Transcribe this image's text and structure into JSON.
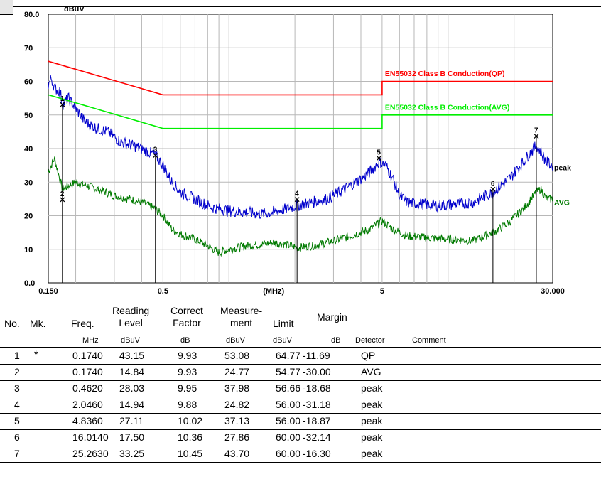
{
  "chart_data": {
    "type": "line",
    "title": "",
    "ylabel": "dBuV",
    "xlabel": "(MHz)",
    "x_scale": "log",
    "xlim": [
      0.15,
      30.0
    ],
    "ylim": [
      0.0,
      80.0
    ],
    "y_tick_labels": [
      "80.0",
      "70",
      "60",
      "50",
      "40",
      "30",
      "20",
      "10",
      "0.0"
    ],
    "y_ticks": [
      80,
      70,
      60,
      50,
      40,
      30,
      20,
      10,
      0
    ],
    "x_tick_labels": [
      "0.150",
      "0.5",
      "(MHz)",
      "5",
      "30.000"
    ],
    "x_tick_values": [
      0.15,
      0.5,
      1.6,
      5,
      30
    ],
    "grid": true,
    "colors": {
      "qp_limit": "#ff0000",
      "avg_limit": "#00ee00",
      "peak": "#0000cc",
      "avg": "#007a00",
      "grid": "#b8b8b8"
    },
    "series": [
      {
        "name": "EN55032 Class B Conduction(QP)",
        "label": "EN55032 Class B Conduction(QP)",
        "color": "#ff0000",
        "points": [
          [
            0.15,
            66.0
          ],
          [
            0.5,
            56.0
          ],
          [
            5,
            56.0
          ],
          [
            5,
            60.0
          ],
          [
            30,
            60.0
          ]
        ]
      },
      {
        "name": "EN55032 Class B Conduction(AVG)",
        "label": "EN55032 Class B Conduction(AVG)",
        "color": "#00ee00",
        "points": [
          [
            0.15,
            56.0
          ],
          [
            0.5,
            46.0
          ],
          [
            5,
            46.0
          ],
          [
            5,
            50.0
          ],
          [
            30,
            50.0
          ]
        ]
      },
      {
        "name": "peak",
        "label": "peak",
        "color": "#0000cc",
        "points": [
          [
            0.15,
            59
          ],
          [
            0.155,
            61
          ],
          [
            0.16,
            58
          ],
          [
            0.17,
            57
          ],
          [
            0.174,
            53
          ],
          [
            0.185,
            55
          ],
          [
            0.2,
            52
          ],
          [
            0.22,
            48
          ],
          [
            0.25,
            46
          ],
          [
            0.28,
            45
          ],
          [
            0.32,
            42
          ],
          [
            0.36,
            41
          ],
          [
            0.4,
            40
          ],
          [
            0.462,
            38
          ],
          [
            0.5,
            35
          ],
          [
            0.55,
            30
          ],
          [
            0.6,
            27
          ],
          [
            0.7,
            25
          ],
          [
            0.8,
            23
          ],
          [
            0.9,
            22
          ],
          [
            1.0,
            21.5
          ],
          [
            1.2,
            21
          ],
          [
            1.4,
            20.5
          ],
          [
            1.6,
            21
          ],
          [
            1.8,
            22
          ],
          [
            2.046,
            23
          ],
          [
            2.4,
            24
          ],
          [
            2.8,
            25
          ],
          [
            3.2,
            27
          ],
          [
            3.6,
            29
          ],
          [
            4.0,
            31
          ],
          [
            4.4,
            33
          ],
          [
            4.836,
            36
          ],
          [
            5.2,
            35
          ],
          [
            5.6,
            31
          ],
          [
            6.0,
            26
          ],
          [
            6.5,
            24
          ],
          [
            7.5,
            23.5
          ],
          [
            9,
            23
          ],
          [
            11,
            23.5
          ],
          [
            13,
            24
          ],
          [
            16,
            27
          ],
          [
            19,
            31
          ],
          [
            22,
            36
          ],
          [
            25.26,
            41
          ],
          [
            26.5,
            39
          ],
          [
            28,
            36
          ],
          [
            30,
            35
          ]
        ],
        "peak_variation": 3.5
      },
      {
        "name": "AVG",
        "label": "AVG",
        "color": "#007a00",
        "points": [
          [
            0.15,
            33
          ],
          [
            0.16,
            37
          ],
          [
            0.174,
            28
          ],
          [
            0.2,
            30
          ],
          [
            0.25,
            28
          ],
          [
            0.3,
            26
          ],
          [
            0.35,
            25
          ],
          [
            0.4,
            24
          ],
          [
            0.462,
            22
          ],
          [
            0.5,
            20
          ],
          [
            0.55,
            16
          ],
          [
            0.6,
            14.5
          ],
          [
            0.7,
            13
          ],
          [
            0.8,
            11
          ],
          [
            0.9,
            9
          ],
          [
            1.0,
            10
          ],
          [
            1.2,
            11
          ],
          [
            1.4,
            11.5
          ],
          [
            1.6,
            12
          ],
          [
            1.8,
            11.5
          ],
          [
            2.046,
            10.5
          ],
          [
            2.4,
            11
          ],
          [
            2.8,
            12
          ],
          [
            3.2,
            13
          ],
          [
            3.6,
            14
          ],
          [
            4.0,
            15
          ],
          [
            4.4,
            16
          ],
          [
            5.0,
            18.5
          ],
          [
            5.6,
            16
          ],
          [
            6.5,
            14
          ],
          [
            8,
            13.5
          ],
          [
            10,
            13
          ],
          [
            13,
            12.5
          ],
          [
            16,
            15
          ],
          [
            19,
            18
          ],
          [
            22,
            22
          ],
          [
            25.26,
            27
          ],
          [
            26.5,
            28
          ],
          [
            28,
            25
          ],
          [
            30,
            25
          ]
        ],
        "peak_variation": 2.5
      }
    ],
    "markers": [
      {
        "label": "1",
        "freq": 0.174,
        "level": 53.08
      },
      {
        "label": "2",
        "freq": 0.174,
        "level": 24.77
      },
      {
        "label": "3",
        "freq": 0.462,
        "level": 37.98
      },
      {
        "label": "4",
        "freq": 2.046,
        "level": 24.82
      },
      {
        "label": "5",
        "freq": 4.836,
        "level": 37.13
      },
      {
        "label": "6",
        "freq": 16.014,
        "level": 27.86
      },
      {
        "label": "7",
        "freq": 25.263,
        "level": 43.7
      }
    ]
  },
  "table": {
    "headers": {
      "no": "No.",
      "mk": "Mk.",
      "freq": "Freq.",
      "reading_1": "Reading",
      "reading_2": "Level",
      "correct_1": "Correct",
      "correct_2": "Factor",
      "measure_1": "Measure-",
      "measure_2": "ment",
      "limit": "Limit",
      "margin": "Margin"
    },
    "units": {
      "freq": "MHz",
      "reading": "dBuV",
      "correct": "dB",
      "measure": "dBuV",
      "limit": "dBuV",
      "margin": "dB",
      "detector": "Detector",
      "comment": "Comment"
    },
    "rows": [
      {
        "no": "1",
        "mk": "*",
        "freq": "0.1740",
        "reading": "43.15",
        "correct": "9.93",
        "measure": "53.08",
        "limit": "64.77",
        "margin": "-11.69",
        "detector": "QP"
      },
      {
        "no": "2",
        "mk": "",
        "freq": "0.1740",
        "reading": "14.84",
        "correct": "9.93",
        "measure": "24.77",
        "limit": "54.77",
        "margin": "-30.00",
        "detector": "AVG"
      },
      {
        "no": "3",
        "mk": "",
        "freq": "0.4620",
        "reading": "28.03",
        "correct": "9.95",
        "measure": "37.98",
        "limit": "56.66",
        "margin": "-18.68",
        "detector": "peak"
      },
      {
        "no": "4",
        "mk": "",
        "freq": "2.0460",
        "reading": "14.94",
        "correct": "9.88",
        "measure": "24.82",
        "limit": "56.00",
        "margin": "-31.18",
        "detector": "peak"
      },
      {
        "no": "5",
        "mk": "",
        "freq": "4.8360",
        "reading": "27.11",
        "correct": "10.02",
        "measure": "37.13",
        "limit": "56.00",
        "margin": "-18.87",
        "detector": "peak"
      },
      {
        "no": "6",
        "mk": "",
        "freq": "16.0140",
        "reading": "17.50",
        "correct": "10.36",
        "measure": "27.86",
        "limit": "60.00",
        "margin": "-32.14",
        "detector": "peak"
      },
      {
        "no": "7",
        "mk": "",
        "freq": "25.2630",
        "reading": "33.25",
        "correct": "10.45",
        "measure": "43.70",
        "limit": "60.00",
        "margin": "-16.30",
        "detector": "peak"
      }
    ]
  }
}
